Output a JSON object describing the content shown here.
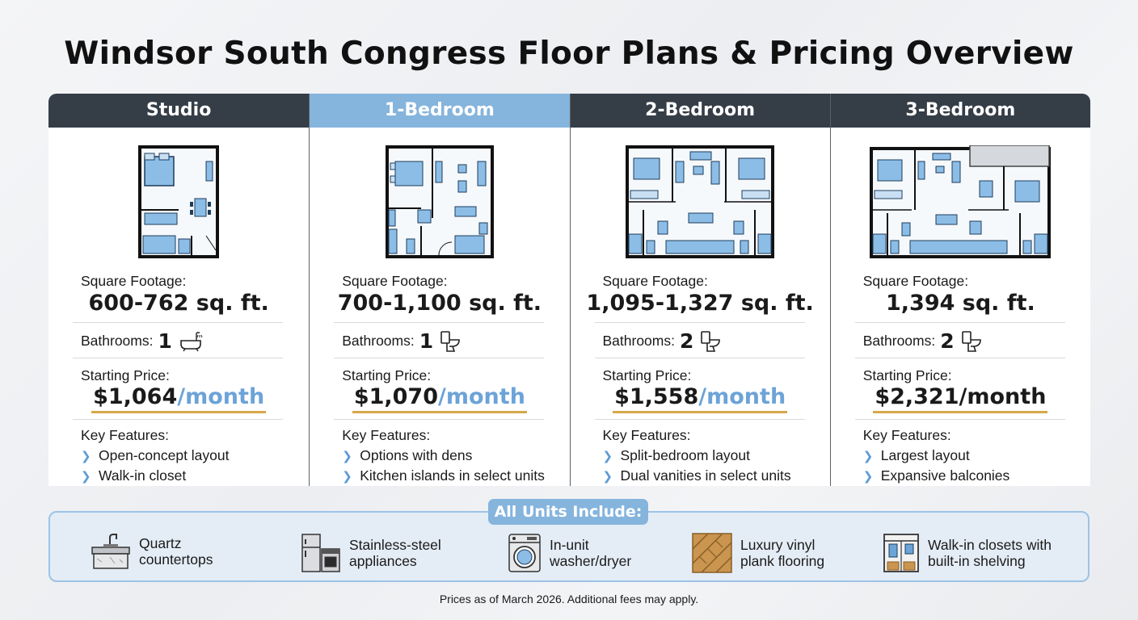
{
  "title": "Windsor South Congress Floor Plans & Pricing Overview",
  "labels": {
    "square_footage": "Square Footage:",
    "bathrooms": "Bathrooms:",
    "starting_price": "Starting Price:",
    "key_features": "Key Features:"
  },
  "colors": {
    "header_dark": "#353d47",
    "header_active": "#85b4dd",
    "accent_blue": "#6ca3d8",
    "price_underline": "#d6a84a"
  },
  "plans": [
    {
      "name": "Studio",
      "sqft": "600-762 sq. ft.",
      "bathrooms": "1",
      "bath_icon": "bathtub-icon",
      "price_amount": "$1,064",
      "price_unit": "/month",
      "features": [
        "Open-concept layout",
        "Walk-in closet"
      ]
    },
    {
      "name": "1-Bedroom",
      "sqft": "700-1,100 sq. ft.",
      "bathrooms": "1",
      "bath_icon": "toilet-icon",
      "price_amount": "$1,070",
      "price_unit": "/month",
      "features": [
        "Options with dens",
        "Kitchen islands in select units"
      ]
    },
    {
      "name": "2-Bedroom",
      "sqft": "1,095-1,327 sq. ft.",
      "bathrooms": "2",
      "bath_icon": "toilet-icon",
      "price_amount": "$1,558",
      "price_unit": "/month",
      "features": [
        "Split-bedroom layout",
        "Dual vanities in select units"
      ]
    },
    {
      "name": "3-Bedroom",
      "sqft": "1,394 sq. ft.",
      "bathrooms": "2",
      "bath_icon": "toilet-icon",
      "price_amount": "$2,321",
      "price_unit": "/month",
      "features": [
        "Largest layout",
        "Expansive balconies"
      ]
    }
  ],
  "includes": {
    "heading": "All Units Include:",
    "items": [
      {
        "icon": "sink-countertop-icon",
        "line1": "Quartz",
        "line2": "countertops"
      },
      {
        "icon": "fridge-stove-icon",
        "line1": "Stainless-steel",
        "line2": "appliances"
      },
      {
        "icon": "washer-icon",
        "line1": "In-unit",
        "line2": "washer/dryer"
      },
      {
        "icon": "wood-floor-icon",
        "line1": "Luxury vinyl",
        "line2": "plank flooring"
      },
      {
        "icon": "closet-icon",
        "line1": "Walk-in closets with",
        "line2": "built-in shelving"
      }
    ]
  },
  "footnote": "Prices as of March 2026. Additional fees may apply."
}
